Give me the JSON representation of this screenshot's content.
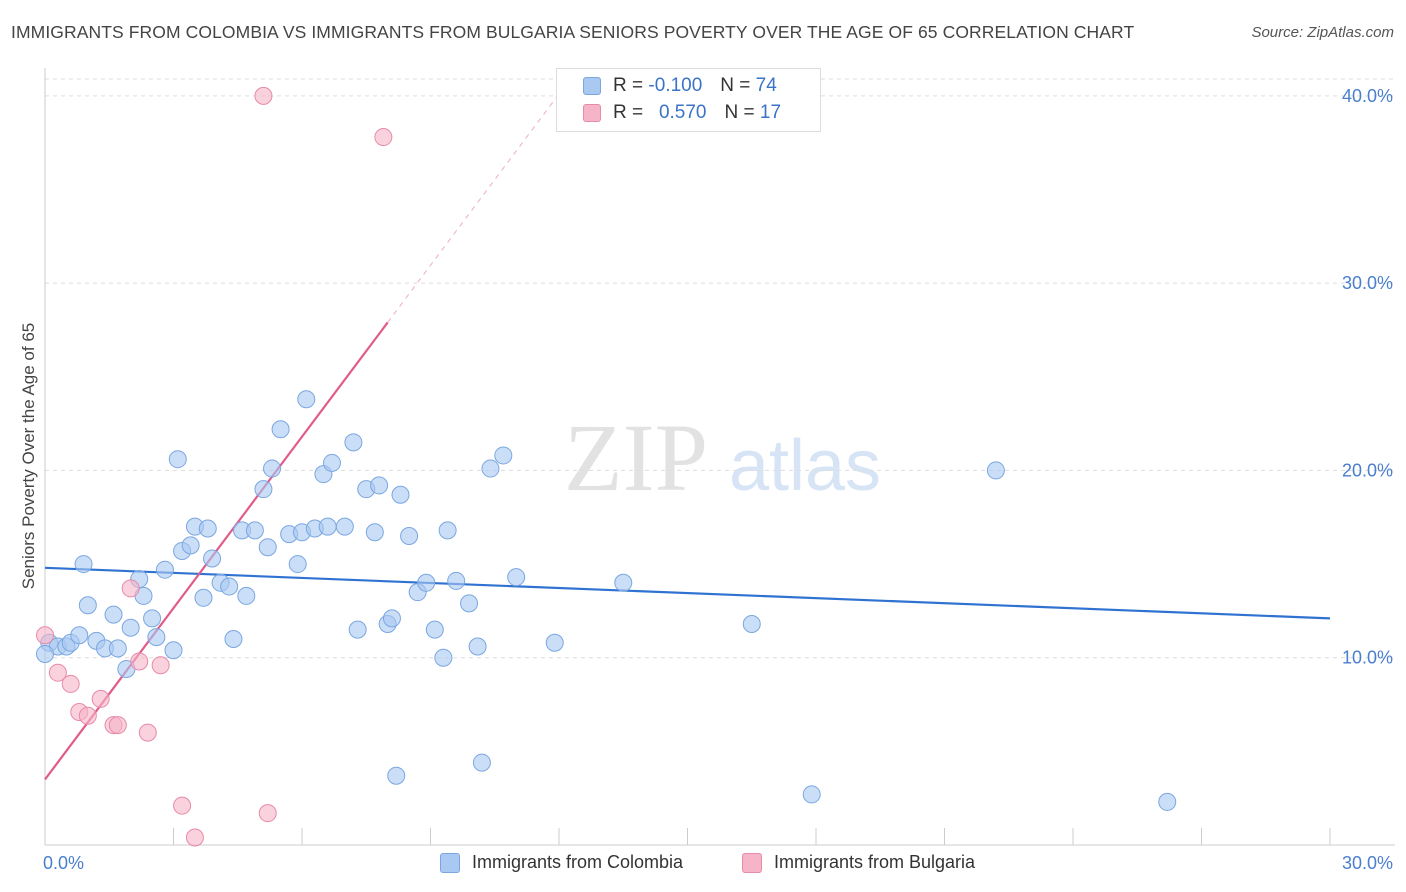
{
  "title": "IMMIGRANTS FROM COLOMBIA VS IMMIGRANTS FROM BULGARIA SENIORS POVERTY OVER THE AGE OF 65 CORRELATION CHART",
  "source": "Source: ZipAtlas.com",
  "watermark": {
    "zip": "ZIP",
    "atlas": "atlas"
  },
  "legend": {
    "rows": [
      {
        "r_label": "R = ",
        "r_value": "-0.100",
        "n_label": "N = ",
        "n_value": "74",
        "color": "#a9c8f2"
      },
      {
        "r_label": "R = ",
        "r_value": "0.570",
        "n_label": "N = ",
        "n_value": "17",
        "color": "#f5b4c8"
      }
    ]
  },
  "bottom_legend": {
    "colombia": "Immigrants from Colombia",
    "bulgaria": "Immigrants from Bulgaria"
  },
  "colors": {
    "colombia_fill": "#a9c8f2",
    "colombia_stroke": "#7aa7e0",
    "colombia_line": "#2f72d1",
    "bulgaria_fill": "#f5b4c8",
    "bulgaria_stroke": "#e88aa8",
    "bulgaria_line": "#e05c8a",
    "grid": "#dddddd",
    "tick": "#4a7fcf"
  },
  "chart_data": {
    "type": "scatter",
    "title": "IMMIGRANTS FROM COLOMBIA VS IMMIGRANTS FROM BULGARIA SENIORS POVERTY OVER THE AGE OF 65 CORRELATION CHART",
    "xlabel": "",
    "ylabel": "Seniors Poverty Over the Age of 65",
    "xlim": [
      0,
      30
    ],
    "ylim": [
      0,
      40.9
    ],
    "x_tick_labels": [
      "0.0%",
      "30.0%"
    ],
    "y_ticks": [
      10,
      20,
      30,
      40
    ],
    "y_tick_labels": [
      "10.0%",
      "20.0%",
      "30.0%",
      "40.0%"
    ],
    "series": [
      {
        "name": "Immigrants from Colombia",
        "trend": {
          "x0": 0,
          "y0": 14.8,
          "x1": 30,
          "y1": 12.1
        },
        "points": [
          [
            0.1,
            10.8
          ],
          [
            0.3,
            10.6
          ],
          [
            0.5,
            10.6
          ],
          [
            0.6,
            10.8
          ],
          [
            0.8,
            11.2
          ],
          [
            1.0,
            12.8
          ],
          [
            1.2,
            10.9
          ],
          [
            1.4,
            10.5
          ],
          [
            1.6,
            12.3
          ],
          [
            1.7,
            10.5
          ],
          [
            0.9,
            15.0
          ],
          [
            1.9,
            9.4
          ],
          [
            2.0,
            11.6
          ],
          [
            2.2,
            14.2
          ],
          [
            2.3,
            13.3
          ],
          [
            2.5,
            12.1
          ],
          [
            2.6,
            11.1
          ],
          [
            2.8,
            14.7
          ],
          [
            3.0,
            10.4
          ],
          [
            3.1,
            20.6
          ],
          [
            3.2,
            15.7
          ],
          [
            3.4,
            16.0
          ],
          [
            3.5,
            17.0
          ],
          [
            3.7,
            13.2
          ],
          [
            3.8,
            16.9
          ],
          [
            3.9,
            15.3
          ],
          [
            4.1,
            14.0
          ],
          [
            4.3,
            13.8
          ],
          [
            4.4,
            11.0
          ],
          [
            4.6,
            16.8
          ],
          [
            4.7,
            13.3
          ],
          [
            4.9,
            16.8
          ],
          [
            5.1,
            19.0
          ],
          [
            5.2,
            15.9
          ],
          [
            5.3,
            20.1
          ],
          [
            5.5,
            22.2
          ],
          [
            5.7,
            16.6
          ],
          [
            5.9,
            15.0
          ],
          [
            6.0,
            16.7
          ],
          [
            6.1,
            23.8
          ],
          [
            6.3,
            16.9
          ],
          [
            6.5,
            19.8
          ],
          [
            6.6,
            17.0
          ],
          [
            6.7,
            20.4
          ],
          [
            7.0,
            17.0
          ],
          [
            7.2,
            21.5
          ],
          [
            7.3,
            11.5
          ],
          [
            7.5,
            19.0
          ],
          [
            7.7,
            16.7
          ],
          [
            7.8,
            19.2
          ],
          [
            8.0,
            11.8
          ],
          [
            8.1,
            12.1
          ],
          [
            8.3,
            18.7
          ],
          [
            8.5,
            16.5
          ],
          [
            8.7,
            13.5
          ],
          [
            8.9,
            14.0
          ],
          [
            9.1,
            11.5
          ],
          [
            9.3,
            10.0
          ],
          [
            9.4,
            16.8
          ],
          [
            9.6,
            14.1
          ],
          [
            9.9,
            12.9
          ],
          [
            10.1,
            10.6
          ],
          [
            10.4,
            20.1
          ],
          [
            10.7,
            20.8
          ],
          [
            11.0,
            14.3
          ],
          [
            11.9,
            10.8
          ],
          [
            13.5,
            14.0
          ],
          [
            16.5,
            11.8
          ],
          [
            22.2,
            20.0
          ],
          [
            8.2,
            3.7
          ],
          [
            10.2,
            4.4
          ],
          [
            17.9,
            2.7
          ],
          [
            26.2,
            2.3
          ],
          [
            0.0,
            10.2
          ]
        ]
      },
      {
        "name": "Immigrants from Bulgaria",
        "trend": {
          "x0": 0,
          "y0": 3.5,
          "x1": 8.0,
          "y1": 27.9,
          "dash_x1": 12.0,
          "dash_y1": 40.1
        },
        "points": [
          [
            0.0,
            11.2
          ],
          [
            0.3,
            9.2
          ],
          [
            0.6,
            8.6
          ],
          [
            0.8,
            7.1
          ],
          [
            1.0,
            6.9
          ],
          [
            1.3,
            7.8
          ],
          [
            1.6,
            6.4
          ],
          [
            1.7,
            6.4
          ],
          [
            2.0,
            13.7
          ],
          [
            2.2,
            9.8
          ],
          [
            2.4,
            6.0
          ],
          [
            2.7,
            9.6
          ],
          [
            3.2,
            2.1
          ],
          [
            3.5,
            0.4
          ],
          [
            5.2,
            1.7
          ],
          [
            5.1,
            40.0
          ],
          [
            7.9,
            37.8
          ]
        ]
      }
    ]
  }
}
